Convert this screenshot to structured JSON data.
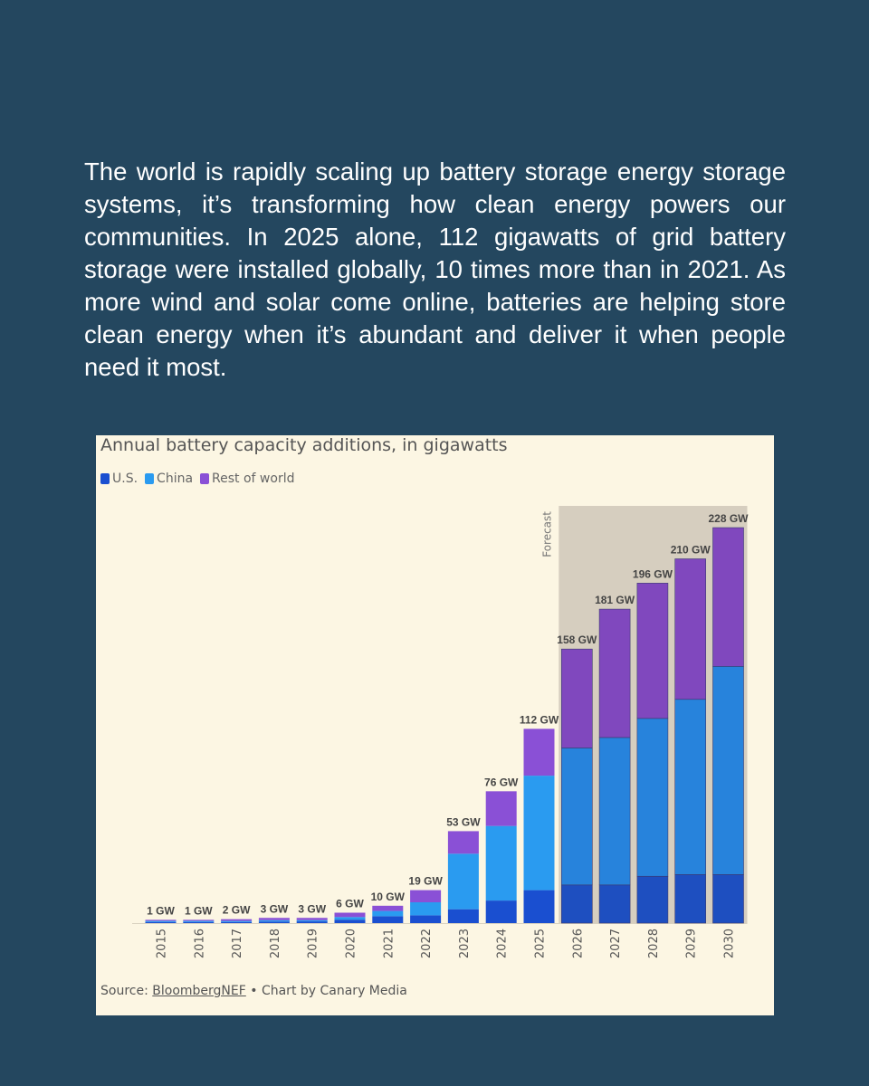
{
  "intro": {
    "text": "The world is rapidly scaling up battery storage energy storage systems, it’s transforming how clean energy powers our communities. In 2025 alone, 112 gigawatts of grid battery storage were installed globally, 10 times more than in 2021. As more wind and solar come online, batteries are helping store clean energy when it’s abundant and deliver it when people need it most."
  },
  "source": {
    "prefix": "Source: ",
    "link": "BloombergNEF",
    "suffix": " • Chart by Canary Media"
  },
  "colors": {
    "us": "#1a4fd0",
    "china": "#2a9bf0",
    "rest": "#8a50d6",
    "us_forecast": "#1e4fc0",
    "china_forecast": "#2783dc",
    "rest_forecast": "#8048be",
    "forecast_band": "#d6cebf"
  },
  "chart_data": {
    "type": "bar",
    "stacked": true,
    "title": "Annual battery capacity additions, in gigawatts",
    "legend_position": "top-left",
    "categories": [
      "2015",
      "2016",
      "2017",
      "2018",
      "2019",
      "2020",
      "2021",
      "2022",
      "2023",
      "2024",
      "2025",
      "2026",
      "2027",
      "2028",
      "2029",
      "2030"
    ],
    "series": [
      {
        "name": "U.S.",
        "values": [
          0.3,
          0.3,
          0.5,
          0.9,
          1,
          2,
          4,
          4.5,
          8,
          13,
          19,
          22,
          22,
          27,
          28,
          28
        ]
      },
      {
        "name": "China",
        "values": [
          0.2,
          0.2,
          0.5,
          0.8,
          0.7,
          1.5,
          3,
          7.5,
          32,
          43,
          66,
          79,
          85,
          91,
          101,
          120
        ]
      },
      {
        "name": "Rest of world",
        "values": [
          0.5,
          0.5,
          1,
          1.3,
          1.3,
          2.5,
          3,
          7,
          13,
          20,
          27,
          57,
          74,
          78,
          81,
          80
        ]
      }
    ],
    "totals": [
      1,
      1,
      2,
      3,
      3,
      6,
      10,
      19,
      53,
      76,
      112,
      158,
      181,
      196,
      210,
      228
    ],
    "total_labels": [
      "1 GW",
      "1 GW",
      "2 GW",
      "3 GW",
      "3 GW",
      "6 GW",
      "10 GW",
      "19 GW",
      "53 GW",
      "76 GW",
      "112 GW",
      "158 GW",
      "181 GW",
      "196 GW",
      "210 GW",
      "228 GW"
    ],
    "forecast_label": "Forecast",
    "forecast_from": "2026",
    "ylim": [
      0,
      240
    ],
    "grid": false
  }
}
